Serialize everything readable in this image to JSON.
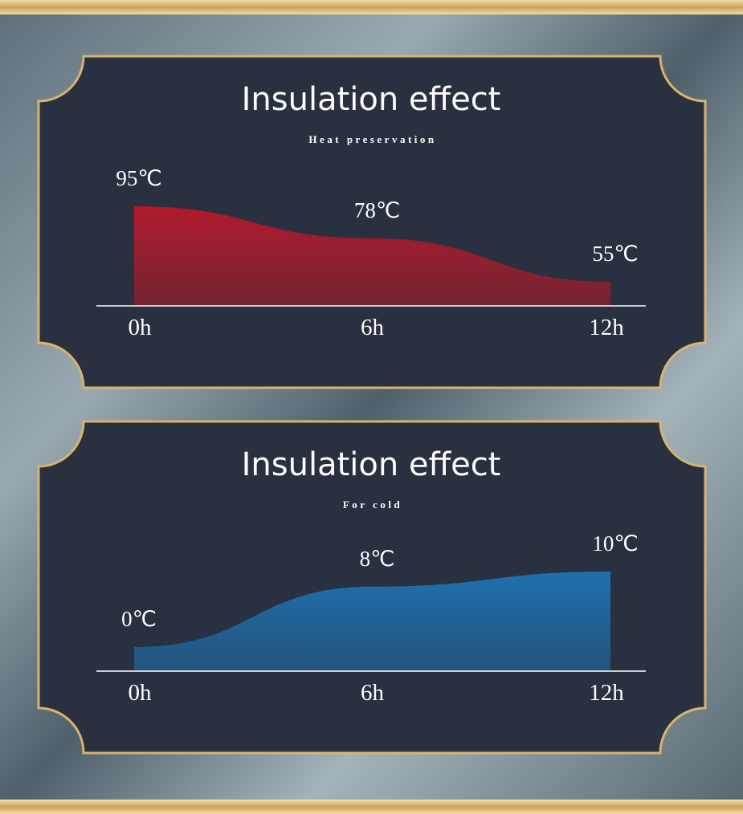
{
  "chart_data": [
    {
      "type": "area",
      "title": "Insulation effect",
      "subtitle": "Heat preservation",
      "categories": [
        "0h",
        "6h",
        "12h"
      ],
      "values": [
        95,
        78,
        55
      ],
      "value_labels": [
        "95℃",
        "78℃",
        "55℃"
      ],
      "color": "#b01a2c"
    },
    {
      "type": "area",
      "title": "Insulation effect",
      "subtitle": "For cold",
      "categories": [
        "0h",
        "6h",
        "12h"
      ],
      "values": [
        0,
        8,
        10
      ],
      "value_labels": [
        "0℃",
        "8℃",
        "10℃"
      ],
      "color": "#1f70ad"
    }
  ]
}
